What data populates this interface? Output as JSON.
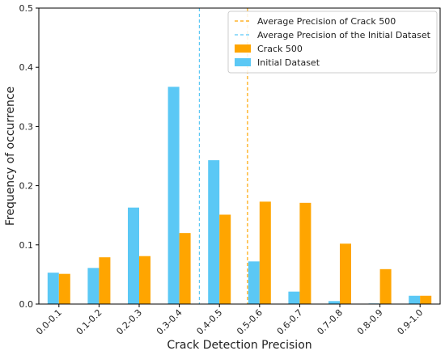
{
  "chart_data": {
    "type": "bar",
    "xlabel": "Crack Detection Precision",
    "ylabel": "Frequency of occurrence",
    "ylim": [
      0,
      0.5
    ],
    "yticks": [
      "0.0",
      "0.1",
      "0.2",
      "0.3",
      "0.4",
      "0.5"
    ],
    "categories": [
      "0.0-0.1",
      "0.1-0.2",
      "0.2-0.3",
      "0.3-0.4",
      "0.4-0.5",
      "0.5-0.6",
      "0.6-0.7",
      "0.7-0.8",
      "0.8-0.9",
      "0.9-1.0"
    ],
    "series": [
      {
        "name": "Initial Dataset",
        "color": "#5bc8f5",
        "values": [
          0.053,
          0.061,
          0.163,
          0.367,
          0.243,
          0.072,
          0.021,
          0.005,
          0.001,
          0.014
        ]
      },
      {
        "name": "Crack 500",
        "color": "#ffa500",
        "values": [
          0.051,
          0.079,
          0.081,
          0.12,
          0.151,
          0.173,
          0.171,
          0.102,
          0.059,
          0.014
        ]
      }
    ],
    "reference_lines": [
      {
        "name": "Average Precision of Crack 500",
        "x": 0.52,
        "color": "#ffa500",
        "style": "dashed"
      },
      {
        "name": "Average Precision of the Initial Dataset",
        "x": 0.4,
        "color": "#5bc8f5",
        "style": "dashed"
      }
    ],
    "legend": {
      "placement": "top-right",
      "entries": [
        {
          "label": "Average Precision of Crack 500",
          "kind": "line",
          "color": "#ffa500"
        },
        {
          "label": "Average Precision of the Initial Dataset",
          "kind": "line",
          "color": "#5bc8f5"
        },
        {
          "label": "Crack 500",
          "kind": "patch",
          "color": "#ffa500"
        },
        {
          "label": "Initial Dataset",
          "kind": "patch",
          "color": "#5bc8f5"
        }
      ]
    },
    "grid": false
  }
}
